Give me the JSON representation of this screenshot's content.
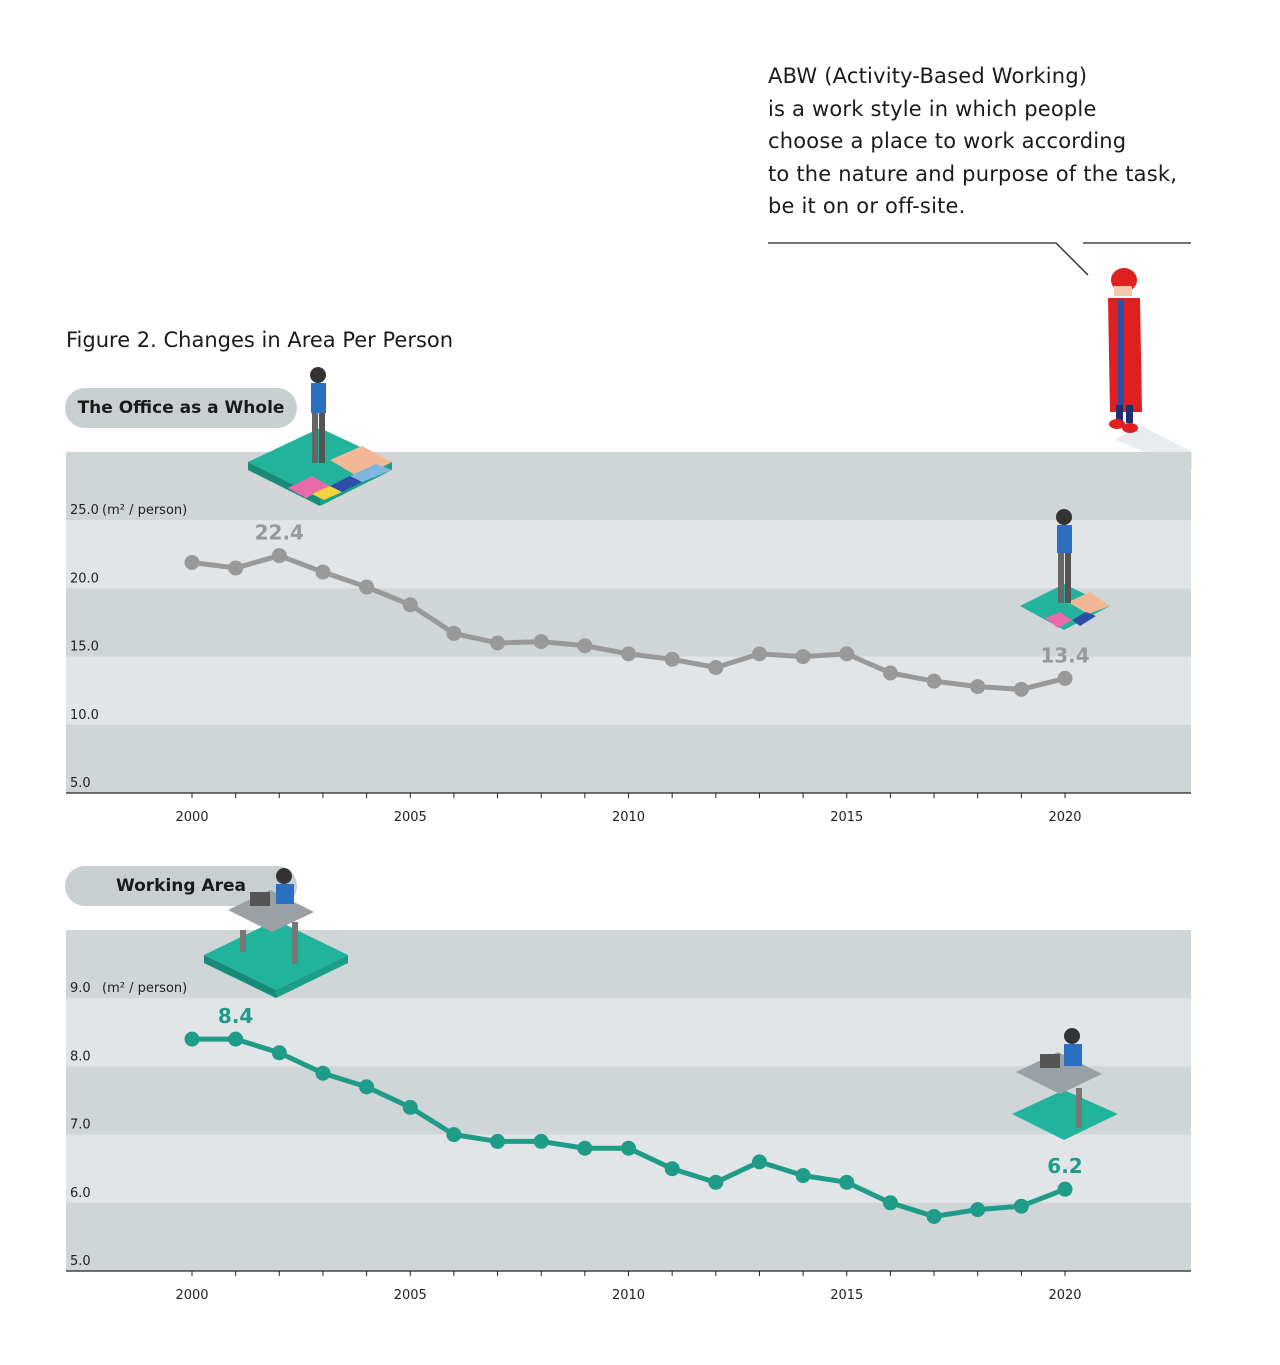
{
  "note": {
    "text": "ABW (Activity-Based Working)\nis a work style in which people\nchoose a place to work according\nto the nature and purpose of the task,\nbe it on or off-site."
  },
  "figure_title": "Figure 2. Changes in Area Per Person",
  "colors": {
    "band_dark": "#d0d5d8",
    "band_light": "#e2e5e8",
    "series_gray": "#999999",
    "series_teal": "#1f9c88",
    "accent_red": "#e02020"
  },
  "chart_data": [
    {
      "type": "line",
      "label": "The Office as a Whole",
      "unit": "(m² / person)",
      "yticks": [
        "25.0",
        "20.0",
        "15.0",
        "10.0",
        "5.0"
      ],
      "xticks": [
        "2000",
        "2005",
        "2010",
        "2015",
        "2020"
      ],
      "x": [
        2000,
        2001,
        2002,
        2003,
        2004,
        2005,
        2006,
        2007,
        2008,
        2009,
        2010,
        2011,
        2012,
        2013,
        2014,
        2015,
        2016,
        2017,
        2018,
        2019,
        2020
      ],
      "values": [
        21.9,
        21.5,
        22.4,
        21.2,
        20.1,
        18.8,
        16.7,
        16.0,
        16.1,
        15.8,
        15.2,
        14.8,
        14.2,
        15.2,
        15.0,
        15.2,
        13.8,
        13.2,
        12.8,
        12.6,
        13.4
      ],
      "labels": [
        {
          "x": 2002,
          "text": "22.4"
        },
        {
          "x": 2020,
          "text": "13.4"
        }
      ],
      "ylim": [
        5,
        30
      ],
      "color": "#999999"
    },
    {
      "type": "line",
      "label": "Working Area",
      "unit": "(m² / person)",
      "yticks": [
        "9.0",
        "8.0",
        "7.0",
        "6.0",
        "5.0"
      ],
      "xticks": [
        "2000",
        "2005",
        "2010",
        "2015",
        "2020"
      ],
      "x": [
        2000,
        2001,
        2002,
        2003,
        2004,
        2005,
        2006,
        2007,
        2008,
        2009,
        2010,
        2011,
        2012,
        2013,
        2014,
        2015,
        2016,
        2017,
        2018,
        2019,
        2020
      ],
      "values": [
        8.4,
        8.4,
        8.2,
        7.9,
        7.7,
        7.4,
        7.0,
        6.9,
        6.9,
        6.8,
        6.8,
        6.5,
        6.3,
        6.6,
        6.4,
        6.3,
        6.0,
        5.8,
        5.9,
        5.95,
        6.2
      ],
      "labels": [
        {
          "x": 2001,
          "text": "8.4"
        },
        {
          "x": 2020,
          "text": "6.2"
        }
      ],
      "ylim": [
        5,
        10
      ],
      "color": "#1f9c88"
    }
  ]
}
